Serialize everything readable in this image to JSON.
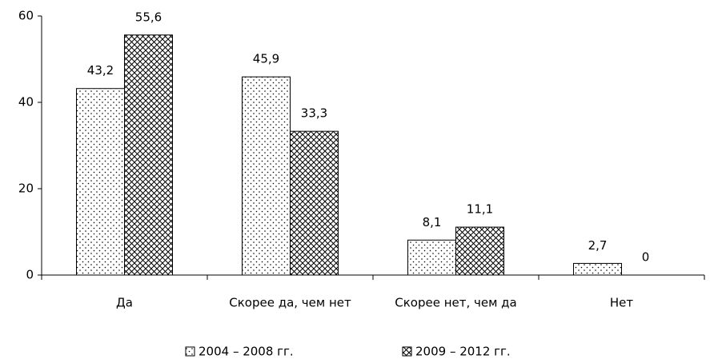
{
  "chart_data": {
    "type": "bar",
    "categories": [
      "Да",
      "Скорее да, чем нет",
      "Скорее нет, чем да",
      "Нет"
    ],
    "series": [
      {
        "name": "2004 – 2008 гг.",
        "values": [
          43.2,
          45.9,
          8.1,
          2.7
        ],
        "value_labels": [
          "43,2",
          "45,9",
          "8,1",
          "2,7"
        ]
      },
      {
        "name": "2009 – 2012 гг.",
        "values": [
          55.6,
          33.3,
          11.1,
          0
        ],
        "value_labels": [
          "55,6",
          "33,3",
          "11,1",
          "0"
        ]
      }
    ],
    "ylim": [
      0,
      60
    ],
    "yticks": [
      0,
      20,
      40,
      60
    ],
    "grid": false,
    "legend": "bottom"
  }
}
